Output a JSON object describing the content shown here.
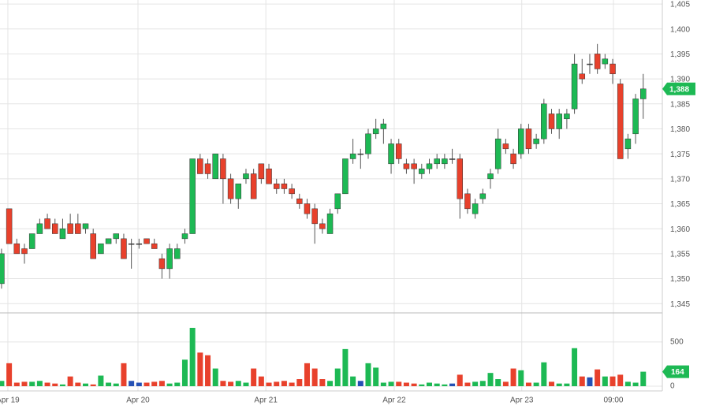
{
  "chart_data": {
    "type": "candlestick",
    "open": [
      1349,
      1364,
      1357,
      1356,
      1356,
      1359,
      1362,
      1361,
      1358,
      1361,
      1361,
      1360,
      1359,
      1355,
      1357,
      1358,
      1358,
      1357,
      1357,
      1358,
      1357,
      1354,
      1352,
      1354,
      1358,
      1359,
      1374,
      1373,
      1370,
      1374,
      1370,
      1366,
      1370,
      1371,
      1373,
      1372,
      1369,
      1369,
      1368,
      1366,
      1365,
      1364,
      1361,
      1359,
      1364,
      1367,
      1374,
      1375,
      1375,
      1379,
      1380,
      1373,
      1377,
      1373,
      1373,
      1371,
      1372,
      1373,
      1373,
      1374,
      1374,
      1367,
      1363,
      1366,
      1370,
      1372,
      1377,
      1375,
      1375,
      1380,
      1377,
      1378,
      1383,
      1380,
      1382,
      1384,
      1391,
      1393,
      1395,
      1393,
      1393,
      1389,
      1376,
      1379,
      1386
    ],
    "high": [
      1356,
      1364,
      1358,
      1357,
      1359,
      1362,
      1363,
      1362,
      1362,
      1363,
      1363,
      1361,
      1360,
      1357,
      1358,
      1359,
      1359,
      1358,
      1358,
      1358,
      1358,
      1355,
      1357,
      1357,
      1360,
      1374,
      1375,
      1374,
      1375,
      1375,
      1371,
      1369,
      1372,
      1372,
      1373,
      1373,
      1370,
      1370,
      1369,
      1367,
      1366,
      1365,
      1362,
      1364,
      1367,
      1374,
      1378,
      1376,
      1380,
      1382,
      1382,
      1378,
      1378,
      1374,
      1374,
      1373,
      1374,
      1375,
      1375,
      1376,
      1375,
      1368,
      1366,
      1368,
      1372,
      1380,
      1378,
      1376,
      1381,
      1381,
      1379,
      1386,
      1384,
      1384,
      1384,
      1395,
      1394,
      1395,
      1397,
      1395,
      1394,
      1390,
      1379,
      1387,
      1391
    ],
    "low": [
      1348,
      1357,
      1355,
      1353,
      1356,
      1359,
      1360,
      1359,
      1358,
      1359,
      1359,
      1359,
      1354,
      1355,
      1357,
      1357,
      1354,
      1352,
      1356,
      1357,
      1356,
      1350,
      1350,
      1354,
      1357,
      1359,
      1371,
      1370,
      1370,
      1365,
      1365,
      1364,
      1369,
      1366,
      1369,
      1369,
      1367,
      1367,
      1366,
      1364,
      1362,
      1357,
      1359,
      1359,
      1363,
      1367,
      1373,
      1372,
      1374,
      1378,
      1377,
      1371,
      1373,
      1371,
      1369,
      1370,
      1371,
      1372,
      1372,
      1373,
      1362,
      1363,
      1362,
      1365,
      1368,
      1371,
      1375,
      1372,
      1374,
      1375,
      1376,
      1377,
      1379,
      1378,
      1380,
      1383,
      1389,
      1391,
      1391,
      1392,
      1389,
      1374,
      1374,
      1377,
      1382
    ],
    "close": [
      1355,
      1357,
      1355,
      1355,
      1359,
      1361,
      1360,
      1359,
      1360,
      1359,
      1359,
      1361,
      1354,
      1357,
      1358,
      1359,
      1354,
      1357,
      1357,
      1357,
      1356,
      1352,
      1356,
      1356,
      1359,
      1374,
      1371,
      1371,
      1375,
      1370,
      1366,
      1369,
      1371,
      1366,
      1370,
      1369,
      1368,
      1368,
      1367,
      1365,
      1363,
      1361,
      1360,
      1363,
      1367,
      1374,
      1375,
      1375,
      1379,
      1380,
      1381,
      1377,
      1374,
      1372,
      1372,
      1372,
      1373,
      1374,
      1374,
      1374,
      1366,
      1364,
      1365,
      1367,
      1371,
      1378,
      1376,
      1373,
      1380,
      1376,
      1378,
      1385,
      1380,
      1383,
      1383,
      1393,
      1390,
      1393,
      1392,
      1394,
      1391,
      1374,
      1378,
      1386,
      1388
    ],
    "volume": [
      60,
      260,
      40,
      50,
      50,
      60,
      40,
      30,
      20,
      110,
      40,
      30,
      20,
      120,
      40,
      30,
      260,
      60,
      40,
      40,
      50,
      60,
      30,
      40,
      300,
      660,
      380,
      350,
      200,
      60,
      50,
      60,
      40,
      200,
      110,
      40,
      50,
      60,
      40,
      80,
      260,
      200,
      80,
      60,
      200,
      420,
      110,
      60,
      260,
      210,
      40,
      50,
      50,
      40,
      30,
      20,
      40,
      30,
      20,
      30,
      130,
      40,
      50,
      60,
      150,
      80,
      50,
      200,
      180,
      40,
      40,
      270,
      50,
      30,
      30,
      430,
      110,
      100,
      190,
      110,
      110,
      130,
      50,
      40,
      164
    ],
    "up_color": "#1db954",
    "down_color": "#e8412c",
    "flat_color": "#2450b4",
    "xlim": [
      -0.2,
      86.5
    ],
    "xticks": [
      {
        "value": 0.83,
        "label": "Apr 19"
      },
      {
        "value": 17.86,
        "label": "Apr 20"
      },
      {
        "value": 34.6,
        "label": "Apr 21"
      },
      {
        "value": 51.4,
        "label": "Apr 22"
      },
      {
        "value": 68.1,
        "label": "Apr 23"
      },
      {
        "value": 80.1,
        "label": "09:00"
      }
    ],
    "ylim": [
      1343.3,
      1405.8
    ],
    "yticks": [
      {
        "value": 1345,
        "label": "1,345"
      },
      {
        "value": 1350,
        "label": "1,350"
      },
      {
        "value": 1355,
        "label": "1,355"
      },
      {
        "value": 1360,
        "label": "1,360"
      },
      {
        "value": 1365,
        "label": "1,365"
      },
      {
        "value": 1370,
        "label": "1,370"
      },
      {
        "value": 1375,
        "label": "1,375"
      },
      {
        "value": 1380,
        "label": "1,380"
      },
      {
        "value": 1385,
        "label": "1,385"
      },
      {
        "value": 1390,
        "label": "1,390"
      },
      {
        "value": 1395,
        "label": "1,395"
      },
      {
        "value": 1400,
        "label": "1,400"
      },
      {
        "value": 1405,
        "label": "1,405"
      }
    ],
    "vol_ylim": [
      0,
      820
    ],
    "vol_yticks": [
      0,
      500
    ],
    "price_tag": {
      "value": 1388,
      "label": "1,388"
    },
    "volume_tag": 164,
    "grid": true
  }
}
